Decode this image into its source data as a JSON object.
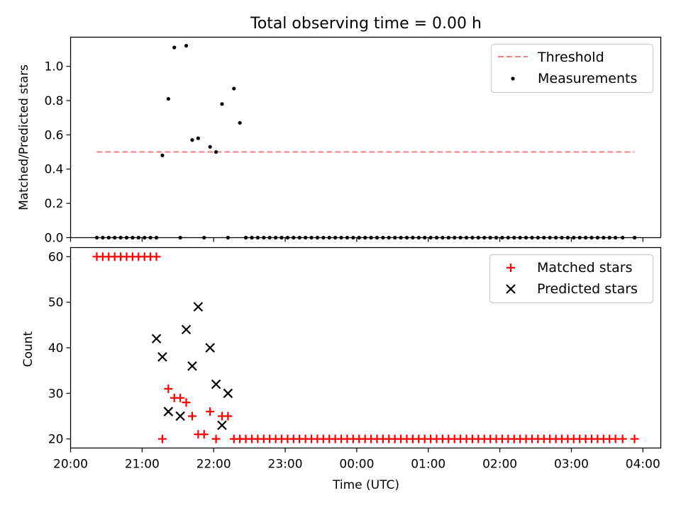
{
  "figure": {
    "title": "Total observing time = 0.00 h",
    "xlabel": "Time (UTC)"
  },
  "colors": {
    "threshold": "#ff7f7f",
    "measurements": "#000000",
    "matched": "#ff0000",
    "predicted": "#000000"
  },
  "chart_data": [
    {
      "type": "scatter",
      "ylabel": "Matched/Predicted stars",
      "xlim": [
        "20:00",
        "04:15"
      ],
      "ylim": [
        0,
        1.17
      ],
      "yticks": [
        "0.0",
        "0.2",
        "0.4",
        "0.6",
        "0.8",
        "1.0"
      ],
      "xticks": [
        "20:00",
        "21:00",
        "22:00",
        "23:00",
        "00:00",
        "01:00",
        "02:00",
        "03:00",
        "04:00"
      ],
      "legend": {
        "position": "upper right",
        "entries": [
          {
            "name": "Threshold",
            "marker": "dashed-line"
          },
          {
            "name": "Measurements",
            "marker": "dot"
          }
        ]
      },
      "series": [
        {
          "name": "Threshold",
          "kind": "line",
          "x": [
            "20:22",
            "03:53"
          ],
          "y": [
            0.5,
            0.5
          ]
        },
        {
          "name": "Measurements",
          "kind": "scatter",
          "x": [
            "20:22",
            "20:27",
            "20:32",
            "20:37",
            "20:42",
            "20:47",
            "20:52",
            "20:57",
            "21:02",
            "21:07",
            "21:12",
            "21:17",
            "21:22",
            "21:27",
            "21:32",
            "21:37",
            "21:42",
            "21:47",
            "21:52",
            "21:57",
            "22:02",
            "22:07",
            "22:12",
            "22:17",
            "22:22",
            "22:27",
            "22:32",
            "22:37",
            "22:42",
            "22:47",
            "22:52",
            "22:57",
            "23:02",
            "23:07",
            "23:12",
            "23:17",
            "23:22",
            "23:27",
            "23:32",
            "23:37",
            "23:42",
            "23:47",
            "23:52",
            "23:57",
            "00:02",
            "00:07",
            "00:12",
            "00:17",
            "00:22",
            "00:27",
            "00:32",
            "00:37",
            "00:42",
            "00:47",
            "00:52",
            "00:57",
            "01:02",
            "01:07",
            "01:12",
            "01:17",
            "01:22",
            "01:27",
            "01:32",
            "01:37",
            "01:42",
            "01:47",
            "01:52",
            "01:57",
            "02:02",
            "02:07",
            "02:12",
            "02:17",
            "02:22",
            "02:27",
            "02:32",
            "02:37",
            "02:42",
            "02:47",
            "02:52",
            "02:57",
            "03:02",
            "03:07",
            "03:12",
            "03:17",
            "03:22",
            "03:27",
            "03:32",
            "03:37",
            "03:43",
            "03:53"
          ],
          "y": [
            0,
            0,
            0,
            0,
            0,
            0,
            0,
            0,
            0,
            0,
            0,
            0.48,
            0.81,
            1.11,
            0,
            1.12,
            0.57,
            0.58,
            0,
            0.53,
            0.5,
            0.78,
            0,
            0.87,
            0.67,
            0,
            0,
            0,
            0,
            0,
            0,
            0,
            0,
            0,
            0,
            0,
            0,
            0,
            0,
            0,
            0,
            0,
            0,
            0,
            0,
            0,
            0,
            0,
            0,
            0,
            0,
            0,
            0,
            0,
            0,
            0,
            0,
            0,
            0,
            0,
            0,
            0,
            0,
            0,
            0,
            0,
            0,
            0,
            0,
            0,
            0,
            0,
            0,
            0,
            0,
            0,
            0,
            0,
            0,
            0,
            0,
            0,
            0,
            0,
            0,
            0,
            0,
            0,
            0,
            0
          ]
        }
      ]
    },
    {
      "type": "scatter",
      "ylabel": "Count",
      "xlim": [
        "20:00",
        "04:15"
      ],
      "ylim": [
        18,
        62
      ],
      "yticks": [
        "20",
        "30",
        "40",
        "50",
        "60"
      ],
      "xticks": [
        "20:00",
        "21:00",
        "22:00",
        "23:00",
        "00:00",
        "01:00",
        "02:00",
        "03:00",
        "04:00"
      ],
      "legend": {
        "position": "upper right",
        "entries": [
          {
            "name": "Matched stars",
            "marker": "plus"
          },
          {
            "name": "Predicted stars",
            "marker": "x"
          }
        ]
      },
      "series": [
        {
          "name": "Matched stars",
          "kind": "scatter",
          "x": [
            "20:22",
            "20:27",
            "20:32",
            "20:37",
            "20:42",
            "20:47",
            "20:52",
            "20:57",
            "21:02",
            "21:07",
            "21:12",
            "21:17",
            "21:22",
            "21:27",
            "21:32",
            "21:37",
            "21:42",
            "21:47",
            "21:52",
            "21:57",
            "22:02",
            "22:07",
            "22:12",
            "22:17",
            "22:22",
            "22:27",
            "22:32",
            "22:37",
            "22:42",
            "22:47",
            "22:52",
            "22:57",
            "23:02",
            "23:07",
            "23:12",
            "23:17",
            "23:22",
            "23:27",
            "23:32",
            "23:37",
            "23:42",
            "23:47",
            "23:52",
            "23:57",
            "00:02",
            "00:07",
            "00:12",
            "00:17",
            "00:22",
            "00:27",
            "00:32",
            "00:37",
            "00:42",
            "00:47",
            "00:52",
            "00:57",
            "01:02",
            "01:07",
            "01:12",
            "01:17",
            "01:22",
            "01:27",
            "01:32",
            "01:37",
            "01:42",
            "01:47",
            "01:52",
            "01:57",
            "02:02",
            "02:07",
            "02:12",
            "02:17",
            "02:22",
            "02:27",
            "02:32",
            "02:37",
            "02:42",
            "02:47",
            "02:52",
            "02:57",
            "03:02",
            "03:07",
            "03:12",
            "03:17",
            "03:22",
            "03:27",
            "03:32",
            "03:37",
            "03:43",
            "03:53"
          ],
          "y": [
            60,
            60,
            60,
            60,
            60,
            60,
            60,
            60,
            60,
            60,
            60,
            20,
            31,
            29,
            29,
            28,
            25,
            21,
            21,
            26,
            20,
            25,
            25,
            20,
            20,
            20,
            20,
            20,
            20,
            20,
            20,
            20,
            20,
            20,
            20,
            20,
            20,
            20,
            20,
            20,
            20,
            20,
            20,
            20,
            20,
            20,
            20,
            20,
            20,
            20,
            20,
            20,
            20,
            20,
            20,
            20,
            20,
            20,
            20,
            20,
            20,
            20,
            20,
            20,
            20,
            20,
            20,
            20,
            20,
            20,
            20,
            20,
            20,
            20,
            20,
            20,
            20,
            20,
            20,
            20,
            20,
            20,
            20,
            20,
            20,
            20,
            20,
            20,
            20,
            20
          ]
        },
        {
          "name": "Predicted stars",
          "kind": "scatter",
          "x": [
            "21:12",
            "21:17",
            "21:22",
            "21:32",
            "21:37",
            "21:42",
            "21:47",
            "21:57",
            "22:02",
            "22:07",
            "22:12"
          ],
          "y": [
            42,
            38,
            26,
            25,
            44,
            36,
            49,
            40,
            32,
            23,
            30
          ]
        }
      ]
    }
  ]
}
